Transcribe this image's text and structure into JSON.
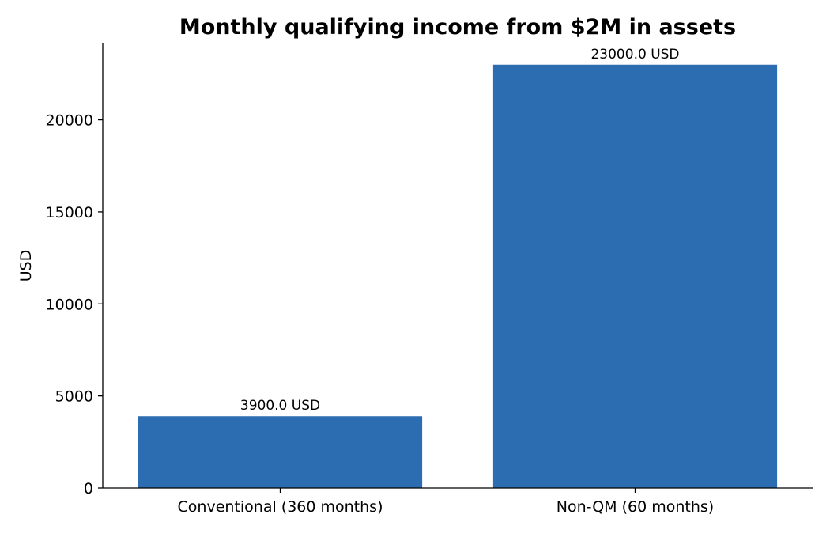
{
  "chart_data": {
    "type": "bar",
    "title": "Monthly qualifying income from $2M in assets",
    "xlabel": "",
    "ylabel": "USD",
    "categories": [
      "Conventional (360 months)",
      "Non-QM (60 months)"
    ],
    "values": [
      3900,
      23000
    ],
    "data_labels": [
      "3900.0 USD",
      "23000.0 USD"
    ],
    "ylim": [
      0,
      24150
    ],
    "yticks": [
      0,
      5000,
      10000,
      15000,
      20000
    ],
    "ytick_labels": [
      "0",
      "5000",
      "10000",
      "15000",
      "20000"
    ],
    "grid": false,
    "legend": "none",
    "bar_color": "#2c6cb0",
    "axis_color": "#000000"
  }
}
